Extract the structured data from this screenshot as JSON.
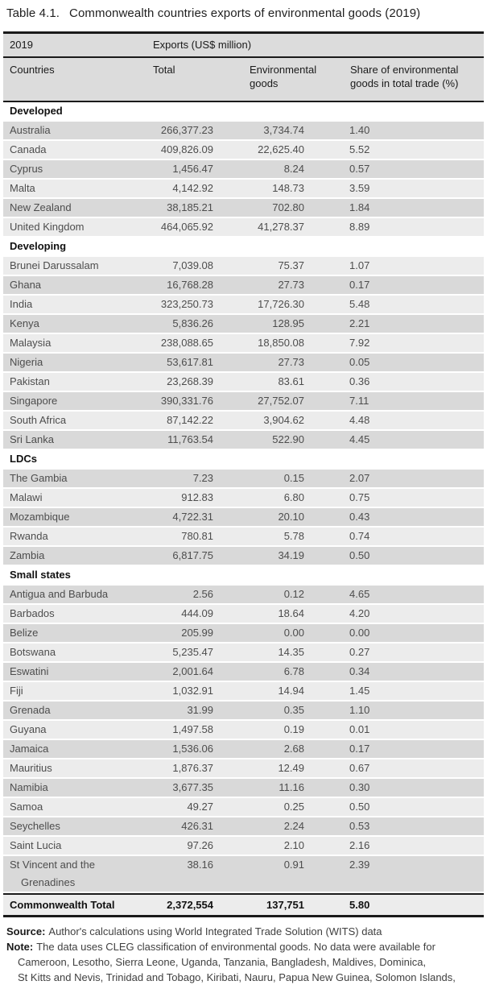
{
  "title": {
    "label": "Table 4.1.",
    "text": "Commonwealth countries exports of environmental goods (2019)"
  },
  "table": {
    "year": "2019",
    "exports_header": "Exports (US$ million)",
    "columns": {
      "countries": "Countries",
      "total": "Total",
      "env_goods": "Environmental goods",
      "share": "Share of environmental goods in total trade (%)"
    }
  },
  "sections": [
    {
      "name": "Developed",
      "rows": [
        {
          "country": "Australia",
          "total": "266,377.23",
          "env": "3,734.74",
          "share": "1.40"
        },
        {
          "country": "Canada",
          "total": "409,826.09",
          "env": "22,625.40",
          "share": "5.52"
        },
        {
          "country": "Cyprus",
          "total": "1,456.47",
          "env": "8.24",
          "share": "0.57"
        },
        {
          "country": "Malta",
          "total": "4,142.92",
          "env": "148.73",
          "share": "3.59"
        },
        {
          "country": "New Zealand",
          "total": "38,185.21",
          "env": "702.80",
          "share": "1.84"
        },
        {
          "country": "United Kingdom",
          "total": "464,065.92",
          "env": "41,278.37",
          "share": "8.89"
        }
      ]
    },
    {
      "name": "Developing",
      "rows": [
        {
          "country": "Brunei Darussalam",
          "total": "7,039.08",
          "env": "75.37",
          "share": "1.07"
        },
        {
          "country": "Ghana",
          "total": "16,768.28",
          "env": "27.73",
          "share": "0.17"
        },
        {
          "country": "India",
          "total": "323,250.73",
          "env": "17,726.30",
          "share": "5.48"
        },
        {
          "country": "Kenya",
          "total": "5,836.26",
          "env": "128.95",
          "share": "2.21"
        },
        {
          "country": "Malaysia",
          "total": "238,088.65",
          "env": "18,850.08",
          "share": "7.92"
        },
        {
          "country": "Nigeria",
          "total": "53,617.81",
          "env": "27.73",
          "share": "0.05"
        },
        {
          "country": "Pakistan",
          "total": "23,268.39",
          "env": "83.61",
          "share": "0.36"
        },
        {
          "country": "Singapore",
          "total": "390,331.76",
          "env": "27,752.07",
          "share": "7.11"
        },
        {
          "country": "South Africa",
          "total": "87,142.22",
          "env": "3,904.62",
          "share": "4.48"
        },
        {
          "country": "Sri Lanka",
          "total": "11,763.54",
          "env": "522.90",
          "share": "4.45"
        }
      ]
    },
    {
      "name": "LDCs",
      "rows": [
        {
          "country": "The Gambia",
          "total": "7.23",
          "env": "0.15",
          "share": "2.07"
        },
        {
          "country": "Malawi",
          "total": "912.83",
          "env": "6.80",
          "share": "0.75"
        },
        {
          "country": "Mozambique",
          "total": "4,722.31",
          "env": "20.10",
          "share": "0.43"
        },
        {
          "country": "Rwanda",
          "total": "780.81",
          "env": "5.78",
          "share": "0.74"
        },
        {
          "country": "Zambia",
          "total": "6,817.75",
          "env": "34.19",
          "share": "0.50"
        }
      ]
    },
    {
      "name": "Small states",
      "rows": [
        {
          "country": "Antigua and Barbuda",
          "total": "2.56",
          "env": "0.12",
          "share": "4.65"
        },
        {
          "country": "Barbados",
          "total": "444.09",
          "env": "18.64",
          "share": "4.20"
        },
        {
          "country": "Belize",
          "total": "205.99",
          "env": "0.00",
          "share": "0.00"
        },
        {
          "country": "Botswana",
          "total": "5,235.47",
          "env": "14.35",
          "share": "0.27"
        },
        {
          "country": "Eswatini",
          "total": "2,001.64",
          "env": "6.78",
          "share": "0.34"
        },
        {
          "country": "Fiji",
          "total": "1,032.91",
          "env": "14.94",
          "share": "1.45"
        },
        {
          "country": "Grenada",
          "total": "31.99",
          "env": "0.35",
          "share": "1.10"
        },
        {
          "country": "Guyana",
          "total": "1,497.58",
          "env": "0.19",
          "share": "0.01"
        },
        {
          "country": "Jamaica",
          "total": "1,536.06",
          "env": "2.68",
          "share": "0.17"
        },
        {
          "country": "Mauritius",
          "total": "1,876.37",
          "env": "12.49",
          "share": "0.67"
        },
        {
          "country": "Namibia",
          "total": "3,677.35",
          "env": "11.16",
          "share": "0.30"
        },
        {
          "country": "Samoa",
          "total": "49.27",
          "env": "0.25",
          "share": "0.50"
        },
        {
          "country": "Seychelles",
          "total": "426.31",
          "env": "2.24",
          "share": "0.53"
        },
        {
          "country": "Saint Lucia",
          "total": "97.26",
          "env": "2.10",
          "share": "2.16"
        },
        {
          "country": "St Vincent and the Grenadines",
          "total": "38.16",
          "env": "0.91",
          "share": "2.39"
        }
      ]
    }
  ],
  "total_row": {
    "label": "Commonwealth Total",
    "total": "2,372,554",
    "env": "137,751",
    "share": "5.80"
  },
  "footer": {
    "source_label": "Source:",
    "source_text": "Author's calculations using World Integrated Trade Solution (WITS) data",
    "note_label": "Note:",
    "note_lines": [
      "The data uses CLEG classification of environmental goods. No data were available for",
      "Cameroon, Lesotho, Sierra Leone, Uganda, Tanzania, Bangladesh, Maldives, Dominica,",
      "St Kitts and Nevis, Trinidad and Tobago, Kiribati, Nauru, Papua New Guinea, Solomon Islands,"
    ]
  },
  "colors": {
    "header_bg": "#dcdcdc",
    "row_dark": "#d9d9d9",
    "row_light": "#ececec",
    "rule": "#1a1a1a"
  }
}
